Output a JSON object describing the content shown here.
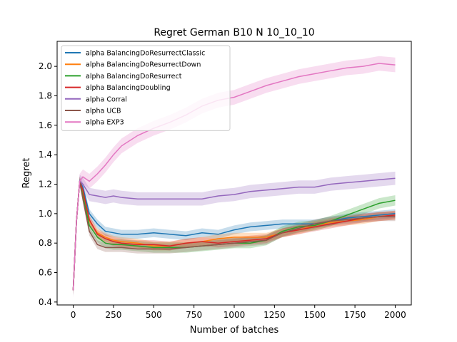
{
  "chart_data": {
    "type": "line",
    "title": "Regret German B10 N 10_10_10",
    "xlabel": "Number of batches",
    "ylabel": "Regret",
    "xlim": [
      -100,
      2100
    ],
    "ylim": [
      0.38,
      2.17
    ],
    "xticks": [
      0,
      250,
      500,
      750,
      1000,
      1250,
      1500,
      1750,
      2000
    ],
    "yticks": [
      0.4,
      0.6,
      0.8,
      1.0,
      1.2,
      1.4,
      1.6,
      1.8,
      2.0
    ],
    "xtick_labels": [
      "0",
      "250",
      "500",
      "750",
      "1000",
      "1250",
      "1500",
      "1750",
      "2000"
    ],
    "ytick_labels": [
      "0.4",
      "0.6",
      "0.8",
      "1.0",
      "1.2",
      "1.4",
      "1.6",
      "1.8",
      "2.0"
    ],
    "grid": false,
    "legend_position": "top-left",
    "series": [
      {
        "name": "alpha BalancingDoResurrectClassic",
        "color": "#1f77b4",
        "band": 0.03,
        "x": [
          0,
          20,
          40,
          60,
          100,
          150,
          200,
          250,
          300,
          400,
          500,
          600,
          700,
          800,
          900,
          1000,
          1100,
          1200,
          1300,
          1400,
          1500,
          1600,
          1700,
          1800,
          1900,
          2000
        ],
        "y": [
          0.48,
          0.95,
          1.22,
          1.18,
          1.0,
          0.93,
          0.88,
          0.87,
          0.86,
          0.86,
          0.87,
          0.86,
          0.85,
          0.87,
          0.86,
          0.89,
          0.91,
          0.92,
          0.93,
          0.93,
          0.93,
          0.95,
          0.97,
          0.98,
          0.99,
          1.0
        ]
      },
      {
        "name": "alpha BalancingDoResurrectDown",
        "color": "#ff7f0e",
        "band": 0.03,
        "x": [
          0,
          20,
          40,
          60,
          100,
          150,
          200,
          250,
          300,
          400,
          500,
          600,
          700,
          800,
          900,
          1000,
          1100,
          1200,
          1300,
          1400,
          1500,
          1600,
          1700,
          1800,
          1900,
          2000
        ],
        "y": [
          0.48,
          0.95,
          1.22,
          1.15,
          0.95,
          0.87,
          0.84,
          0.82,
          0.81,
          0.8,
          0.78,
          0.78,
          0.8,
          0.81,
          0.83,
          0.84,
          0.84,
          0.84,
          0.87,
          0.89,
          0.92,
          0.94,
          0.95,
          0.96,
          0.98,
          0.99
        ]
      },
      {
        "name": "alpha BalancingDoResurrect",
        "color": "#2ca02c",
        "band": 0.035,
        "x": [
          0,
          20,
          40,
          60,
          100,
          150,
          200,
          250,
          300,
          400,
          500,
          600,
          700,
          800,
          900,
          1000,
          1100,
          1200,
          1300,
          1400,
          1500,
          1600,
          1700,
          1800,
          1900,
          2000
        ],
        "y": [
          0.48,
          0.95,
          1.22,
          1.12,
          0.92,
          0.84,
          0.8,
          0.79,
          0.79,
          0.78,
          0.77,
          0.77,
          0.77,
          0.78,
          0.79,
          0.8,
          0.8,
          0.82,
          0.88,
          0.91,
          0.92,
          0.95,
          0.99,
          1.03,
          1.07,
          1.09
        ]
      },
      {
        "name": "alpha BalancingDoubling",
        "color": "#d62728",
        "band": 0.03,
        "x": [
          0,
          20,
          40,
          60,
          100,
          150,
          200,
          250,
          300,
          400,
          500,
          600,
          700,
          800,
          900,
          1000,
          1100,
          1200,
          1300,
          1400,
          1500,
          1600,
          1700,
          1800,
          1900,
          2000
        ],
        "y": [
          0.48,
          0.95,
          1.22,
          1.16,
          0.96,
          0.86,
          0.83,
          0.81,
          0.8,
          0.79,
          0.79,
          0.78,
          0.8,
          0.81,
          0.8,
          0.81,
          0.82,
          0.83,
          0.87,
          0.89,
          0.91,
          0.93,
          0.95,
          0.97,
          0.98,
          0.99
        ]
      },
      {
        "name": "alpha Corral",
        "color": "#9467bd",
        "band": 0.045,
        "x": [
          0,
          20,
          40,
          60,
          100,
          150,
          200,
          250,
          300,
          400,
          500,
          600,
          700,
          800,
          900,
          1000,
          1100,
          1200,
          1300,
          1400,
          1500,
          1600,
          1700,
          1800,
          1900,
          2000
        ],
        "y": [
          0.48,
          0.95,
          1.22,
          1.2,
          1.13,
          1.12,
          1.11,
          1.12,
          1.11,
          1.1,
          1.1,
          1.1,
          1.1,
          1.1,
          1.12,
          1.13,
          1.15,
          1.16,
          1.17,
          1.18,
          1.18,
          1.2,
          1.21,
          1.22,
          1.23,
          1.24
        ]
      },
      {
        "name": "alpha UCB",
        "color": "#8c564b",
        "band": 0.03,
        "x": [
          0,
          20,
          40,
          60,
          100,
          150,
          200,
          250,
          300,
          400,
          500,
          600,
          700,
          800,
          900,
          1000,
          1100,
          1200,
          1300,
          1400,
          1500,
          1600,
          1700,
          1800,
          1900,
          2000
        ],
        "y": [
          0.48,
          0.95,
          1.22,
          1.1,
          0.88,
          0.79,
          0.77,
          0.77,
          0.77,
          0.76,
          0.76,
          0.76,
          0.77,
          0.78,
          0.79,
          0.8,
          0.81,
          0.82,
          0.87,
          0.9,
          0.93,
          0.95,
          0.96,
          0.97,
          0.98,
          0.98
        ]
      },
      {
        "name": "alpha EXP3",
        "color": "#e377c2",
        "band": 0.05,
        "x": [
          0,
          20,
          40,
          60,
          100,
          150,
          200,
          250,
          300,
          400,
          500,
          600,
          700,
          800,
          900,
          1000,
          1100,
          1200,
          1300,
          1400,
          1500,
          1600,
          1700,
          1800,
          1900,
          2000
        ],
        "y": [
          0.48,
          0.95,
          1.22,
          1.25,
          1.22,
          1.27,
          1.33,
          1.4,
          1.46,
          1.53,
          1.58,
          1.62,
          1.67,
          1.73,
          1.77,
          1.79,
          1.83,
          1.87,
          1.9,
          1.93,
          1.95,
          1.97,
          1.99,
          2.0,
          2.02,
          2.01
        ]
      }
    ]
  }
}
